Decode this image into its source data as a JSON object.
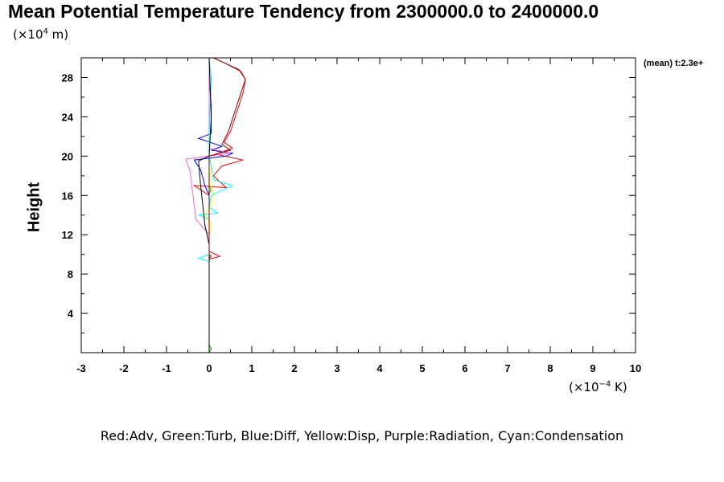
{
  "chart_data": {
    "type": "line",
    "title": "Mean Potential Temperature Tendency from 2300000.0 to 2400000.0",
    "ylabel": "Height",
    "y_unit_prefix": "(×10",
    "y_unit_exp": "4",
    "y_unit_suffix": " m)",
    "x_unit_prefix": "(×10",
    "x_unit_exp": "−4",
    "x_unit_suffix": " K)",
    "corner_label": "(mean) t:2.3e+",
    "legend_text": "Red:Adv, Green:Turb, Blue:Diff, Yellow:Disp, Purple:Radiation, Cyan:Condensation",
    "xlim": [
      -3,
      10
    ],
    "ylim": [
      0,
      30
    ],
    "x_ticks": [
      "-3",
      "-2",
      "-1",
      "0",
      "1",
      "2",
      "3",
      "4",
      "5",
      "6",
      "7",
      "8",
      "9",
      "10"
    ],
    "y_ticks": [
      "4",
      "8",
      "12",
      "16",
      "20",
      "24",
      "28"
    ],
    "grid": false,
    "series": [
      {
        "name": "Adv",
        "color": "#ff0000",
        "points": [
          [
            0,
            0
          ],
          [
            0,
            9.5
          ],
          [
            0.25,
            9.8
          ],
          [
            0,
            10.3
          ],
          [
            0,
            16
          ],
          [
            -0.35,
            17
          ],
          [
            0.4,
            16.8
          ],
          [
            0.1,
            18
          ],
          [
            0.3,
            19
          ],
          [
            0.8,
            19.6
          ],
          [
            0.15,
            20.2
          ],
          [
            0.55,
            20.8
          ],
          [
            0.35,
            21.4
          ],
          [
            0.5,
            22.5
          ],
          [
            0.8,
            26.5
          ],
          [
            0.85,
            27.8
          ],
          [
            0.75,
            28.6
          ],
          [
            0.35,
            29.5
          ],
          [
            0.1,
            30
          ]
        ]
      },
      {
        "name": "Turb",
        "color": "#00aa00",
        "points": [
          [
            0,
            0
          ],
          [
            0.05,
            0.4
          ],
          [
            0,
            0.8
          ],
          [
            0,
            16.2
          ],
          [
            0.05,
            16.6
          ],
          [
            0,
            17
          ],
          [
            0,
            30
          ]
        ]
      },
      {
        "name": "Diff",
        "color": "#0000ff",
        "points": [
          [
            0,
            0
          ],
          [
            0,
            16
          ],
          [
            -0.1,
            17
          ],
          [
            -0.2,
            18.6
          ],
          [
            -0.35,
            19.6
          ],
          [
            0.4,
            20
          ],
          [
            0.55,
            20.3
          ],
          [
            0.05,
            20.6
          ],
          [
            0.3,
            21
          ],
          [
            -0.25,
            21.8
          ],
          [
            0.05,
            22.3
          ],
          [
            0.05,
            25
          ],
          [
            0,
            28
          ],
          [
            0,
            30
          ]
        ]
      },
      {
        "name": "Disp",
        "color": "#ffff00",
        "points": [
          [
            0,
            0
          ],
          [
            0,
            12
          ],
          [
            0.05,
            13
          ],
          [
            -0.1,
            14
          ],
          [
            0.05,
            15
          ],
          [
            0.1,
            16
          ],
          [
            0,
            17.5
          ],
          [
            0.05,
            19
          ],
          [
            0,
            20
          ],
          [
            0,
            30
          ]
        ]
      },
      {
        "name": "Radiation",
        "color": "#ff66cc",
        "points": [
          [
            0,
            0
          ],
          [
            0,
            12
          ],
          [
            -0.3,
            13.5
          ],
          [
            -0.35,
            15
          ],
          [
            -0.45,
            18.5
          ],
          [
            -0.55,
            19.7
          ],
          [
            0,
            20
          ],
          [
            0.5,
            20.3
          ],
          [
            0,
            20.8
          ],
          [
            0,
            30
          ]
        ]
      },
      {
        "name": "Condensation",
        "color": "#00ffff",
        "points": [
          [
            0,
            0
          ],
          [
            0,
            9.3
          ],
          [
            -0.25,
            9.6
          ],
          [
            0,
            10
          ],
          [
            0,
            13.6
          ],
          [
            -0.25,
            14
          ],
          [
            0.2,
            14.2
          ],
          [
            0,
            14.8
          ],
          [
            0.05,
            16
          ],
          [
            0.55,
            17
          ],
          [
            0.1,
            17.6
          ],
          [
            0.05,
            19
          ],
          [
            0,
            20
          ],
          [
            0,
            22
          ],
          [
            0.05,
            28
          ],
          [
            0,
            30
          ]
        ]
      },
      {
        "color": "#000000",
        "points": [
          [
            0,
            0
          ],
          [
            0,
            10.5
          ],
          [
            0,
            11
          ],
          [
            -0.1,
            13
          ],
          [
            -0.15,
            15
          ],
          [
            -0.2,
            17
          ],
          [
            -0.25,
            19.5
          ],
          [
            0,
            20
          ],
          [
            0.05,
            24
          ],
          [
            0,
            30
          ]
        ]
      },
      {
        "color": "#8b0000",
        "points": [
          [
            0,
            9.6
          ],
          [
            0.05,
            9.8
          ],
          [
            0,
            10
          ],
          [
            0,
            20
          ],
          [
            0.5,
            20.6
          ],
          [
            0.3,
            21.2
          ],
          [
            0.45,
            22.5
          ],
          [
            0.75,
            26.5
          ],
          [
            0.85,
            27.8
          ],
          [
            0.7,
            28.8
          ],
          [
            0.3,
            29.6
          ],
          [
            0.1,
            30
          ]
        ]
      }
    ]
  }
}
